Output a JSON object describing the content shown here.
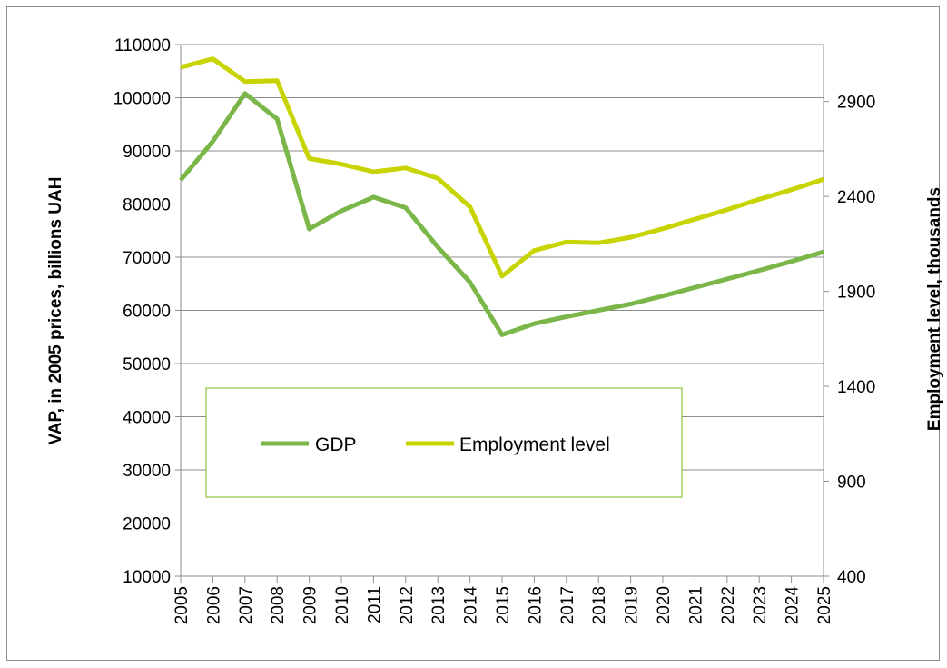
{
  "chart_data": {
    "type": "line",
    "title": "",
    "ylabel": "VAP, in 2005 prices, billions UAH",
    "y2label": "Employment level, thousands",
    "x": [
      "2005",
      "2006",
      "2007",
      "2008",
      "2009",
      "2010",
      "2011",
      "2012",
      "2013",
      "2014",
      "2015",
      "2016",
      "2017",
      "2018",
      "2019",
      "2020",
      "2021",
      "2022",
      "2023",
      "2024",
      "2025"
    ],
    "ylim": [
      10000,
      110000
    ],
    "yticks": [
      "10000",
      "20000",
      "30000",
      "40000",
      "50000",
      "60000",
      "70000",
      "80000",
      "90000",
      "100000",
      "110000"
    ],
    "y2lim": [
      400,
      3200
    ],
    "y2ticks": [
      "400",
      "900",
      "1400",
      "1900",
      "2400",
      "2900"
    ],
    "grid": true,
    "legend_position": "center-left",
    "series": [
      {
        "name": "GDP",
        "axis": "left",
        "color": "#7ab648",
        "values": [
          84500,
          91800,
          100800,
          96000,
          75300,
          78700,
          81300,
          79300,
          71900,
          65300,
          55400,
          57500,
          58800,
          60000,
          61200,
          62700,
          64300,
          65900,
          67500,
          69200,
          71000
        ]
      },
      {
        "name": "Employment level",
        "axis": "right",
        "color": "#c8d400",
        "values": [
          3080,
          3125,
          3005,
          3010,
          2600,
          2570,
          2530,
          2550,
          2495,
          2345,
          1980,
          2115,
          2160,
          2155,
          2185,
          2230,
          2280,
          2330,
          2385,
          2435,
          2490
        ]
      }
    ]
  }
}
